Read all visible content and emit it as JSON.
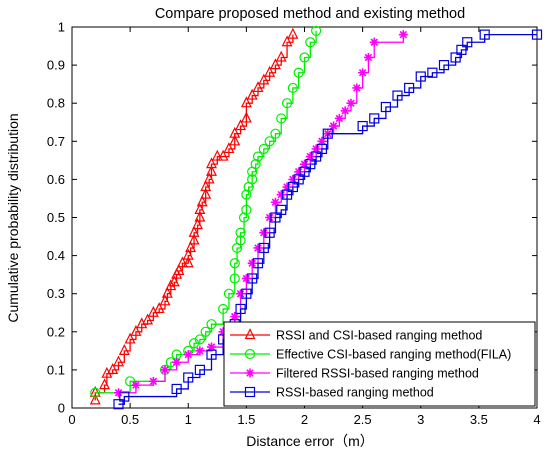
{
  "chart_data": {
    "type": "line",
    "title": "Compare proposed method and existing method",
    "xlabel": "Distance error（m）",
    "ylabel": "Cumulative probability distribution",
    "xlim": [
      0,
      4
    ],
    "ylim": [
      0,
      1
    ],
    "xticks": [
      "0",
      "0.5",
      "1",
      "1.5",
      "2",
      "2.5",
      "3",
      "3.5",
      "4"
    ],
    "yticks": [
      "0",
      "0.1",
      "0.2",
      "0.3",
      "0.4",
      "0.5",
      "0.6",
      "0.7",
      "0.8",
      "0.9",
      "1"
    ],
    "grid": false,
    "legend_position": "bottom-right",
    "series": [
      {
        "name": "RSSI and CSI-based ranging method",
        "color": "#ff0000",
        "marker": "triangle",
        "x": [
          0.2,
          0.2,
          0.28,
          0.3,
          0.35,
          0.4,
          0.45,
          0.5,
          0.55,
          0.6,
          0.65,
          0.7,
          0.75,
          0.8,
          0.82,
          0.85,
          0.88,
          0.9,
          0.92,
          0.95,
          1.0,
          1.0,
          1.02,
          1.05,
          1.05,
          1.08,
          1.1,
          1.1,
          1.12,
          1.15,
          1.15,
          1.18,
          1.2,
          1.2,
          1.25,
          1.3,
          1.35,
          1.4,
          1.4,
          1.45,
          1.5,
          1.5,
          1.55,
          1.6,
          1.65,
          1.7,
          1.75,
          1.8,
          1.85,
          1.9
        ],
        "y": [
          0.02,
          0.04,
          0.06,
          0.09,
          0.1,
          0.12,
          0.15,
          0.18,
          0.2,
          0.22,
          0.23,
          0.25,
          0.26,
          0.28,
          0.3,
          0.32,
          0.33,
          0.35,
          0.36,
          0.38,
          0.38,
          0.4,
          0.42,
          0.44,
          0.46,
          0.48,
          0.5,
          0.52,
          0.54,
          0.56,
          0.58,
          0.6,
          0.62,
          0.64,
          0.66,
          0.66,
          0.68,
          0.7,
          0.72,
          0.74,
          0.76,
          0.8,
          0.82,
          0.84,
          0.86,
          0.88,
          0.9,
          0.92,
          0.96,
          0.98
        ]
      },
      {
        "name": "Effective CSI-based ranging method(FILA)",
        "color": "#00ee00",
        "marker": "circle",
        "x": [
          0.2,
          0.5,
          0.8,
          0.85,
          0.9,
          1.0,
          1.05,
          1.1,
          1.15,
          1.2,
          1.3,
          1.35,
          1.4,
          1.4,
          1.42,
          1.45,
          1.45,
          1.48,
          1.5,
          1.5,
          1.52,
          1.55,
          1.55,
          1.58,
          1.6,
          1.65,
          1.7,
          1.75,
          1.8,
          1.85,
          1.9,
          1.95,
          2.0,
          2.05,
          2.1
        ],
        "y": [
          0.04,
          0.07,
          0.1,
          0.12,
          0.14,
          0.15,
          0.17,
          0.18,
          0.2,
          0.22,
          0.26,
          0.3,
          0.34,
          0.38,
          0.42,
          0.44,
          0.46,
          0.5,
          0.52,
          0.56,
          0.58,
          0.6,
          0.62,
          0.64,
          0.66,
          0.68,
          0.7,
          0.72,
          0.76,
          0.8,
          0.84,
          0.88,
          0.92,
          0.96,
          0.99
        ]
      },
      {
        "name": "Filtered RSSI-based ranging method",
        "color": "#ff00ff",
        "marker": "star",
        "x": [
          0.4,
          0.55,
          0.7,
          0.8,
          0.9,
          1.0,
          1.1,
          1.2,
          1.3,
          1.4,
          1.45,
          1.5,
          1.55,
          1.6,
          1.65,
          1.7,
          1.75,
          1.8,
          1.85,
          1.9,
          1.95,
          2.0,
          2.05,
          2.1,
          2.15,
          2.2,
          2.25,
          2.3,
          2.35,
          2.4,
          2.45,
          2.5,
          2.55,
          2.6,
          2.85
        ],
        "y": [
          0.04,
          0.06,
          0.07,
          0.1,
          0.12,
          0.14,
          0.15,
          0.16,
          0.2,
          0.24,
          0.3,
          0.34,
          0.38,
          0.42,
          0.46,
          0.5,
          0.54,
          0.56,
          0.58,
          0.6,
          0.62,
          0.64,
          0.66,
          0.68,
          0.7,
          0.72,
          0.74,
          0.76,
          0.78,
          0.8,
          0.84,
          0.88,
          0.92,
          0.96,
          0.98
        ]
      },
      {
        "name": "RSSI-based ranging method",
        "color": "#0000dd",
        "marker": "square",
        "x": [
          0.4,
          0.45,
          0.9,
          1.0,
          1.1,
          1.2,
          1.3,
          1.4,
          1.45,
          1.5,
          1.55,
          1.6,
          1.65,
          1.7,
          1.75,
          1.8,
          1.85,
          1.9,
          1.95,
          2.0,
          2.05,
          2.1,
          2.15,
          2.2,
          2.5,
          2.6,
          2.7,
          2.8,
          2.9,
          3.0,
          3.1,
          3.2,
          3.3,
          3.35,
          3.4,
          3.55,
          4.0
        ],
        "y": [
          0.01,
          0.03,
          0.05,
          0.08,
          0.1,
          0.14,
          0.18,
          0.22,
          0.26,
          0.3,
          0.34,
          0.38,
          0.42,
          0.46,
          0.5,
          0.52,
          0.56,
          0.58,
          0.6,
          0.62,
          0.64,
          0.66,
          0.68,
          0.72,
          0.74,
          0.76,
          0.79,
          0.82,
          0.84,
          0.87,
          0.88,
          0.9,
          0.92,
          0.94,
          0.96,
          0.98,
          0.98
        ]
      }
    ]
  }
}
